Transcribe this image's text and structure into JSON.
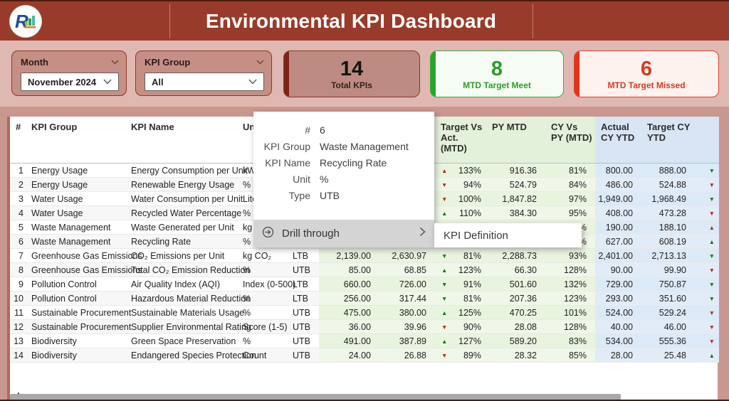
{
  "header": {
    "title": "Environmental KPI Dashboard",
    "logo_letter": "R"
  },
  "filters": {
    "month": {
      "label": "Month",
      "value": "November 2024"
    },
    "kpi_group": {
      "label": "KPI Group",
      "value": "All"
    }
  },
  "cards": [
    {
      "value": "14",
      "label": "Total KPIs"
    },
    {
      "value": "8",
      "label": "MTD Target Meet"
    },
    {
      "value": "6",
      "label": "MTD Target Missed"
    }
  ],
  "icons": {
    "up": "▲",
    "down": "▼",
    "sort_asc": "▲"
  },
  "colors": {
    "header_maroon": "#993b2a",
    "frame_rose": "#ca978e",
    "good_green": "#1a7a1a",
    "bad_red": "#b5301d",
    "mtd_col_green": "#e9f4df",
    "ytd_col_blue": "#dce9f6"
  },
  "table": {
    "columns": [
      "#",
      "KPI Group",
      "KPI Name",
      "Unit",
      "Type",
      "",
      "",
      "Target Vs Act. (MTD)",
      "PY MTD",
      "CY Vs PY (MTD)",
      "Actual CY YTD",
      "Target CY YTD",
      ""
    ],
    "rows": [
      {
        "num": "1",
        "group": "Energy Usage",
        "name": "Energy Consumption per Unit",
        "unit": "kWh",
        "type": "",
        "actual_mtd": "",
        "target_mtd": "",
        "tva_dir": "up",
        "tva_tone": "red",
        "tva_pct": "133%",
        "py_mtd": "916.36",
        "cy_vs_py": "81%",
        "actual_ytd": "800.00",
        "target_ytd": "888.00",
        "ind_dir": "down",
        "ind_tone": "green"
      },
      {
        "num": "2",
        "group": "Energy Usage",
        "name": "Renewable Energy Usage",
        "unit": "%",
        "type": "",
        "actual_mtd": "",
        "target_mtd": "",
        "tva_dir": "down",
        "tva_tone": "red",
        "tva_pct": "94%",
        "py_mtd": "524.79",
        "cy_vs_py": "84%",
        "actual_ytd": "486.00",
        "target_ytd": "524.88",
        "ind_dir": "down",
        "ind_tone": "red"
      },
      {
        "num": "3",
        "group": "Water Usage",
        "name": "Water Consumption per Unit",
        "unit": "Liters",
        "type": "",
        "actual_mtd": "",
        "target_mtd": "",
        "tva_dir": "down",
        "tva_tone": "red",
        "tva_pct": "100%",
        "py_mtd": "1,847.82",
        "cy_vs_py": "97%",
        "actual_ytd": "1,949.00",
        "target_ytd": "1,968.49",
        "ind_dir": "down",
        "ind_tone": "green"
      },
      {
        "num": "4",
        "group": "Water Usage",
        "name": "Recycled Water Percentage",
        "unit": "%",
        "type": "",
        "actual_mtd": "",
        "target_mtd": "",
        "tva_dir": "up",
        "tva_tone": "green",
        "tva_pct": "110%",
        "py_mtd": "384.30",
        "cy_vs_py": "95%",
        "actual_ytd": "408.00",
        "target_ytd": "473.28",
        "ind_dir": "down",
        "ind_tone": "red"
      },
      {
        "num": "5",
        "group": "Waste Management",
        "name": "Waste Generated per Unit",
        "unit": "kg",
        "type": "",
        "actual_mtd": "",
        "target_mtd": "",
        "tva_dir": "",
        "tva_tone": "",
        "tva_pct": "",
        "py_mtd": "",
        "cy_vs_py": "11%",
        "actual_ytd": "190.00",
        "target_ytd": "188.10",
        "ind_dir": "up",
        "ind_tone": "red"
      },
      {
        "num": "6",
        "group": "Waste Management",
        "name": "Recycling Rate",
        "unit": "%",
        "type": "",
        "actual_mtd": "",
        "target_mtd": "",
        "tva_dir": "",
        "tva_tone": "",
        "tva_pct": "",
        "py_mtd": "",
        "cy_vs_py": "39%",
        "actual_ytd": "627.00",
        "target_ytd": "608.19",
        "ind_dir": "up",
        "ind_tone": "green"
      },
      {
        "num": "7",
        "group": "Greenhouse Gas Emissions",
        "name": "CO₂ Emissions per Unit",
        "unit": "kg CO₂",
        "type": "LTB",
        "actual_mtd": "2,139.00",
        "target_mtd": "2,630.97",
        "tva_dir": "down",
        "tva_tone": "green",
        "tva_pct": "81%",
        "py_mtd": "2,288.73",
        "cy_vs_py": "93%",
        "actual_ytd": "2,401.00",
        "target_ytd": "2,713.13",
        "ind_dir": "down",
        "ind_tone": "green"
      },
      {
        "num": "8",
        "group": "Greenhouse Gas Emissions",
        "name": "Total CO₂ Emission Reduction",
        "unit": "%",
        "type": "UTB",
        "actual_mtd": "85.00",
        "target_mtd": "68.85",
        "tva_dir": "up",
        "tva_tone": "green",
        "tva_pct": "123%",
        "py_mtd": "66.30",
        "cy_vs_py": "128%",
        "actual_ytd": "90.00",
        "target_ytd": "99.90",
        "ind_dir": "down",
        "ind_tone": "red"
      },
      {
        "num": "9",
        "group": "Pollution Control",
        "name": "Air Quality Index (AQI)",
        "unit": "Index (0-500)",
        "type": "LTB",
        "actual_mtd": "660.00",
        "target_mtd": "726.00",
        "tva_dir": "down",
        "tva_tone": "green",
        "tva_pct": "91%",
        "py_mtd": "501.60",
        "cy_vs_py": "132%",
        "actual_ytd": "729.00",
        "target_ytd": "750.87",
        "ind_dir": "down",
        "ind_tone": "green"
      },
      {
        "num": "10",
        "group": "Pollution Control",
        "name": "Hazardous Material Reduction",
        "unit": "%",
        "type": "LTB",
        "actual_mtd": "256.00",
        "target_mtd": "317.44",
        "tva_dir": "down",
        "tva_tone": "green",
        "tva_pct": "81%",
        "py_mtd": "207.36",
        "cy_vs_py": "123%",
        "actual_ytd": "293.00",
        "target_ytd": "351.60",
        "ind_dir": "down",
        "ind_tone": "green"
      },
      {
        "num": "11",
        "group": "Sustainable Procurement",
        "name": "Sustainable Materials Usage",
        "unit": "%",
        "type": "UTB",
        "actual_mtd": "475.00",
        "target_mtd": "380.00",
        "tva_dir": "up",
        "tva_tone": "green",
        "tva_pct": "125%",
        "py_mtd": "470.25",
        "cy_vs_py": "101%",
        "actual_ytd": "524.00",
        "target_ytd": "529.24",
        "ind_dir": "down",
        "ind_tone": "red"
      },
      {
        "num": "12",
        "group": "Sustainable Procurement",
        "name": "Supplier Environmental Rating",
        "unit": "Score (1-5)",
        "type": "UTB",
        "actual_mtd": "36.00",
        "target_mtd": "39.96",
        "tva_dir": "down",
        "tva_tone": "red",
        "tva_pct": "90%",
        "py_mtd": "28.08",
        "cy_vs_py": "128%",
        "actual_ytd": "40.00",
        "target_ytd": "46.00",
        "ind_dir": "down",
        "ind_tone": "red"
      },
      {
        "num": "13",
        "group": "Biodiversity",
        "name": "Green Space Preservation",
        "unit": "%",
        "type": "UTB",
        "actual_mtd": "491.00",
        "target_mtd": "387.89",
        "tva_dir": "up",
        "tva_tone": "green",
        "tva_pct": "127%",
        "py_mtd": "589.20",
        "cy_vs_py": "83%",
        "actual_ytd": "534.00",
        "target_ytd": "555.36",
        "ind_dir": "down",
        "ind_tone": "red"
      },
      {
        "num": "14",
        "group": "Biodiversity",
        "name": "Endangered Species Protection",
        "unit": "Count",
        "type": "UTB",
        "actual_mtd": "24.00",
        "target_mtd": "26.88",
        "tva_dir": "down",
        "tva_tone": "red",
        "tva_pct": "89%",
        "py_mtd": "28.32",
        "cy_vs_py": "85%",
        "actual_ytd": "28.00",
        "target_ytd": "25.48",
        "ind_dir": "up",
        "ind_tone": "green"
      }
    ]
  },
  "context_menu": {
    "fields": [
      {
        "label": "#",
        "value": "6"
      },
      {
        "label": "KPI Group",
        "value": "Waste Management"
      },
      {
        "label": "KPI Name",
        "value": "Recycling Rate"
      },
      {
        "label": "Unit",
        "value": "%"
      },
      {
        "label": "Type",
        "value": "UTB"
      }
    ],
    "drill_through_label": "Drill through",
    "submenu_label": "KPI Definition"
  }
}
